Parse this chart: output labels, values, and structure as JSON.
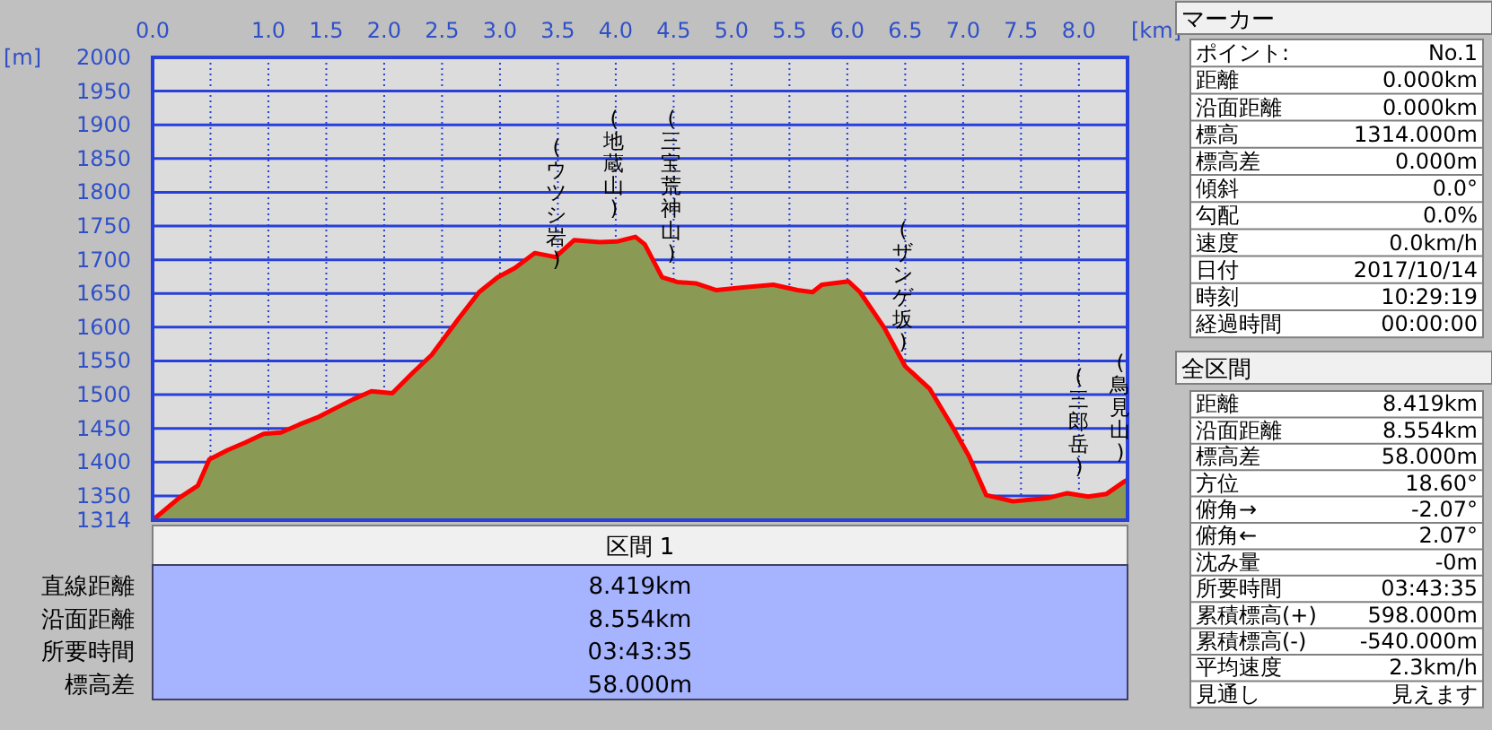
{
  "chart_data": {
    "type": "area",
    "xlabel": "[km]",
    "ylabel": "[m]",
    "xlim": [
      0,
      8.42
    ],
    "ylim": [
      1314,
      2000
    ],
    "xticks": [
      {
        "value": 0,
        "label": "0.0"
      },
      {
        "value": 0.5,
        "label": null
      },
      {
        "value": 1.0,
        "label": "1.0"
      },
      {
        "value": 1.5,
        "label": "1.5"
      },
      {
        "value": 2.0,
        "label": "2.0"
      },
      {
        "value": 2.5,
        "label": "2.5"
      },
      {
        "value": 3.0,
        "label": "3.0"
      },
      {
        "value": 3.5,
        "label": "3.5"
      },
      {
        "value": 4.0,
        "label": "4.0"
      },
      {
        "value": 4.5,
        "label": "4.5"
      },
      {
        "value": 5.0,
        "label": "5.0"
      },
      {
        "value": 5.5,
        "label": "5.5"
      },
      {
        "value": 6.0,
        "label": "6.0"
      },
      {
        "value": 6.5,
        "label": "6.5"
      },
      {
        "value": 7.0,
        "label": "7.0"
      },
      {
        "value": 7.5,
        "label": "7.5"
      },
      {
        "value": 8.0,
        "label": "8.0"
      }
    ],
    "yticks": [
      1314,
      1350,
      1400,
      1450,
      1500,
      1550,
      1600,
      1650,
      1700,
      1750,
      1800,
      1850,
      1900,
      1950,
      2000
    ],
    "grid": true,
    "series": [
      {
        "color": "#8a9a55",
        "x": [
          0,
          0.23,
          0.39,
          0.49,
          0.65,
          0.8,
          0.96,
          1.11,
          1.27,
          1.42,
          1.58,
          1.73,
          1.89,
          2.07,
          2.25,
          2.41,
          2.64,
          2.82,
          2.98,
          3.13,
          3.3,
          3.48,
          3.64,
          3.86,
          4.01,
          4.17,
          4.25,
          4.4,
          4.53,
          4.69,
          4.87,
          5.1,
          5.36,
          5.57,
          5.7,
          5.78,
          6.01,
          6.11,
          6.32,
          6.5,
          6.71,
          6.92,
          7.05,
          7.2,
          7.43,
          7.74,
          7.9,
          8.08,
          8.24,
          8.39,
          8.42
        ],
        "values": [
          1314,
          1347,
          1365,
          1404,
          1418,
          1429,
          1442,
          1444,
          1456,
          1466,
          1480,
          1493,
          1505,
          1502,
          1533,
          1559,
          1612,
          1652,
          1674,
          1688,
          1710,
          1704,
          1729,
          1726,
          1727,
          1734,
          1723,
          1674,
          1667,
          1665,
          1655,
          1659,
          1663,
          1655,
          1652,
          1663,
          1668,
          1652,
          1599,
          1542,
          1509,
          1449,
          1409,
          1351,
          1342,
          1347,
          1354,
          1349,
          1353,
          1371,
          1374
        ]
      }
    ],
    "annotations": [
      "(ウツシ岩)",
      "(地蔵山)",
      "(三宝荒神山)",
      "(ザンゲ坂)",
      "(三郎岳)",
      "(鳥見山)",
      "マーカー",
      "ポイント:",
      "No.1",
      "距離",
      "0.000km",
      "沿面距離",
      "0.000km",
      "標高",
      "1314.000m",
      "標高差",
      "0.000m",
      "傾斜",
      "0.0°",
      "勾配",
      "0.0%",
      "速度",
      "0.0km/h",
      "日付",
      "2017/10/14",
      "時刻",
      "10:29:19",
      "経過時間",
      "00:00:00",
      "全区間",
      "距離",
      "8.419km",
      "沿面距離",
      "8.554km",
      "標高差",
      "58.000m",
      "方位",
      "18.60°",
      "俯角→",
      "-2.07°",
      "俯角←",
      "2.07°",
      "沈み量",
      "-0m",
      "所要時間",
      "03:43:35",
      "累積標高(+)",
      "598.000m",
      "累積標高(-)",
      "-540.000m",
      "平均速度",
      "2.3km/h",
      "見通し",
      "見えます",
      "区間 1",
      "直線距離",
      "8.419km",
      "沿面距離",
      "8.554km",
      "所要時間",
      "03:43:35",
      "標高差",
      "58.000m"
    ]
  }
}
